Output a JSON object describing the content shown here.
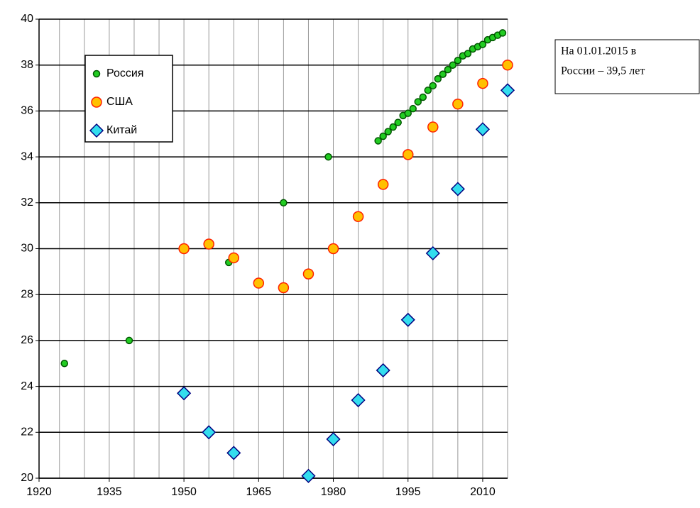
{
  "chart_data": {
    "type": "scatter",
    "series": [
      {
        "name": "Россия",
        "color": "#22cc22",
        "marker": "circle",
        "x": [
          1926,
          1939,
          1959,
          1970,
          1979,
          1989,
          1990,
          1991,
          1992,
          1993,
          1994,
          1995,
          1996,
          1997,
          1998,
          1999,
          2000,
          2001,
          2002,
          2003,
          2004,
          2005,
          2006,
          2007,
          2008,
          2009,
          2010,
          2011,
          2012,
          2013,
          2014
        ],
        "values": [
          25.0,
          26.0,
          29.4,
          32.0,
          34.0,
          34.7,
          34.9,
          35.1,
          35.3,
          35.5,
          35.8,
          35.9,
          36.1,
          36.4,
          36.6,
          36.9,
          37.1,
          37.4,
          37.6,
          37.8,
          38.0,
          38.2,
          38.4,
          38.5,
          38.7,
          38.8,
          38.9,
          39.1,
          39.2,
          39.3,
          39.4
        ]
      },
      {
        "name": "США",
        "color": "#ffc000",
        "marker": "circle",
        "x": [
          1950,
          1955,
          1960,
          1965,
          1970,
          1975,
          1980,
          1985,
          1990,
          1995,
          2000,
          2005,
          2010,
          2015
        ],
        "values": [
          30.0,
          30.2,
          29.6,
          28.5,
          28.3,
          28.9,
          30.0,
          31.4,
          32.8,
          34.1,
          35.3,
          36.3,
          37.2,
          38.0
        ]
      },
      {
        "name": "Китай",
        "color": "#33ddee",
        "marker": "diamond",
        "x": [
          1950,
          1955,
          1960,
          1975,
          1980,
          1985,
          1990,
          1995,
          2000,
          2005,
          2010,
          2015
        ],
        "values": [
          23.7,
          22.0,
          21.1,
          20.1,
          21.7,
          23.4,
          24.7,
          26.9,
          29.8,
          32.6,
          35.2,
          36.9
        ]
      }
    ],
    "xlim": [
      1920.9,
      2015
    ],
    "xticks": [
      1920,
      1935,
      1950,
      1965,
      1980,
      1995,
      2010
    ],
    "xgrid": [
      1925,
      1930,
      1935,
      1940,
      1945,
      1950,
      1955,
      1960,
      1965,
      1970,
      1975,
      1980,
      1985,
      1990,
      1995,
      2000,
      2005,
      2010,
      2015
    ],
    "ylim": [
      20,
      40
    ],
    "yticks": [
      20,
      22,
      24,
      26,
      28,
      30,
      32,
      34,
      36,
      38,
      40
    ],
    "grid": true,
    "annotation": [
      "На 01.01.2015 в",
      "России – 39,5 лет"
    ]
  }
}
